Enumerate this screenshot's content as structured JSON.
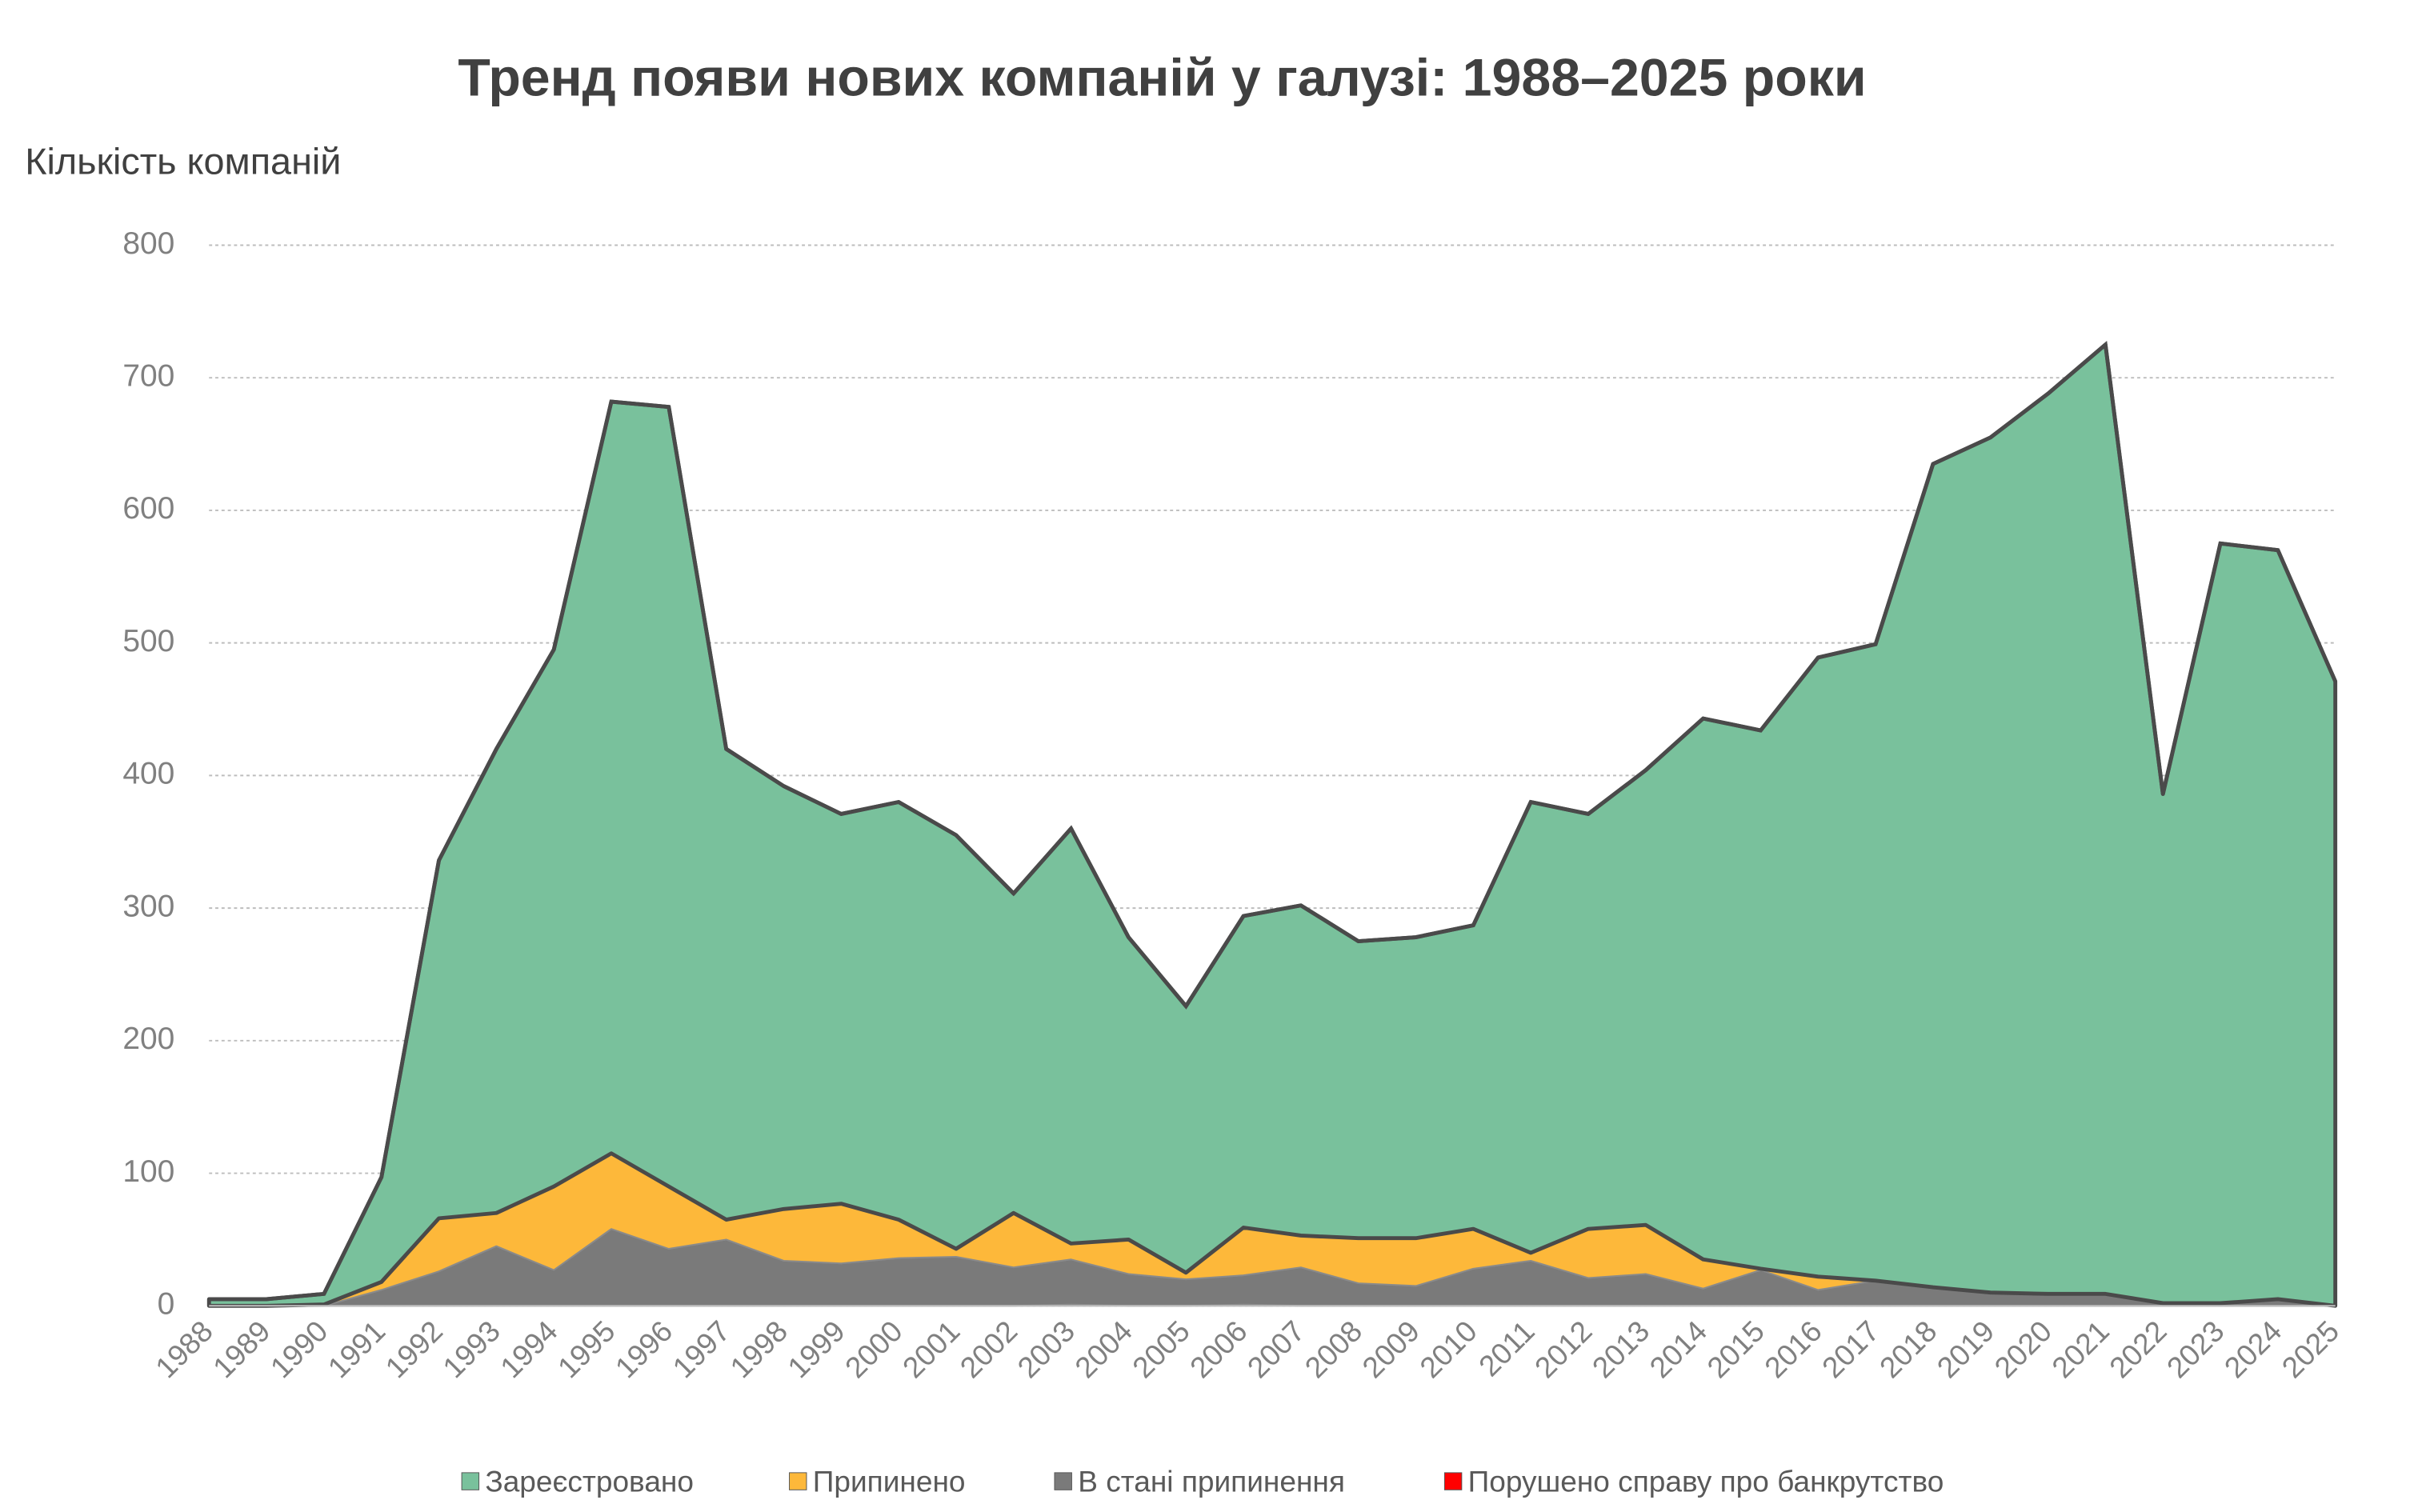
{
  "chart_data": {
    "type": "stacked_area",
    "title": "Тренд появи нових компаній у галузі: 1988–2025 роки",
    "y_label": "Кількість компаній",
    "categories": [
      "1988",
      "1989",
      "1990",
      "1991",
      "1992",
      "1993",
      "1994",
      "1995",
      "1996",
      "1997",
      "1998",
      "1999",
      "2000",
      "2001",
      "2002",
      "2003",
      "2004",
      "2005",
      "2006",
      "2007",
      "2008",
      "2009",
      "2010",
      "2011",
      "2012",
      "2013",
      "2014",
      "2015",
      "2016",
      "2017",
      "2018",
      "2019",
      "2020",
      "2021",
      "2022",
      "2023",
      "2024",
      "2025"
    ],
    "series": [
      {
        "name": "Порушено справу про банкрутство",
        "color": "#ff0000",
        "values": [
          0,
          0,
          0,
          0,
          0,
          0,
          0,
          0,
          0,
          0,
          0,
          0,
          0,
          0,
          0,
          1,
          0,
          0,
          1,
          0,
          0,
          0,
          0,
          0,
          0,
          0,
          0,
          0,
          0,
          0,
          0,
          0,
          0,
          0,
          0,
          0,
          0,
          0
        ]
      },
      {
        "name": "В стані припинення",
        "color": "#7a7a7a",
        "values": [
          0,
          0,
          0,
          12,
          26,
          45,
          27,
          58,
          43,
          50,
          34,
          32,
          36,
          37,
          29,
          34,
          24,
          20,
          22,
          29,
          17,
          15,
          28,
          34,
          21,
          24,
          13,
          27,
          12,
          19,
          14,
          10,
          9,
          9,
          2,
          2,
          5,
          0
        ]
      },
      {
        "name": "Припинено",
        "color": "#fdb83a",
        "values": [
          0,
          0,
          1,
          6,
          40,
          25,
          63,
          57,
          47,
          15,
          39,
          45,
          29,
          6,
          41,
          12,
          26,
          5,
          36,
          24,
          34,
          36,
          30,
          6,
          37,
          37,
          22,
          1,
          10,
          0,
          0,
          0,
          0,
          0,
          0,
          0,
          0,
          0
        ]
      },
      {
        "name": "Зареєстровано",
        "color": "#79c19c",
        "values": [
          5,
          5,
          8,
          79,
          270,
          350,
          405,
          567,
          588,
          355,
          319,
          294,
          315,
          312,
          241,
          313,
          228,
          201,
          235,
          249,
          224,
          227,
          229,
          340,
          313,
          343,
          408,
          406,
          467,
          480,
          621,
          645,
          679,
          716,
          384,
          573,
          565,
          471
        ]
      }
    ],
    "legend_order": [
      3,
      2,
      1,
      0
    ],
    "ylim": [
      0,
      800
    ],
    "yticks": [
      0,
      100,
      200,
      300,
      400,
      500,
      600,
      700,
      800
    ],
    "grid": true
  }
}
